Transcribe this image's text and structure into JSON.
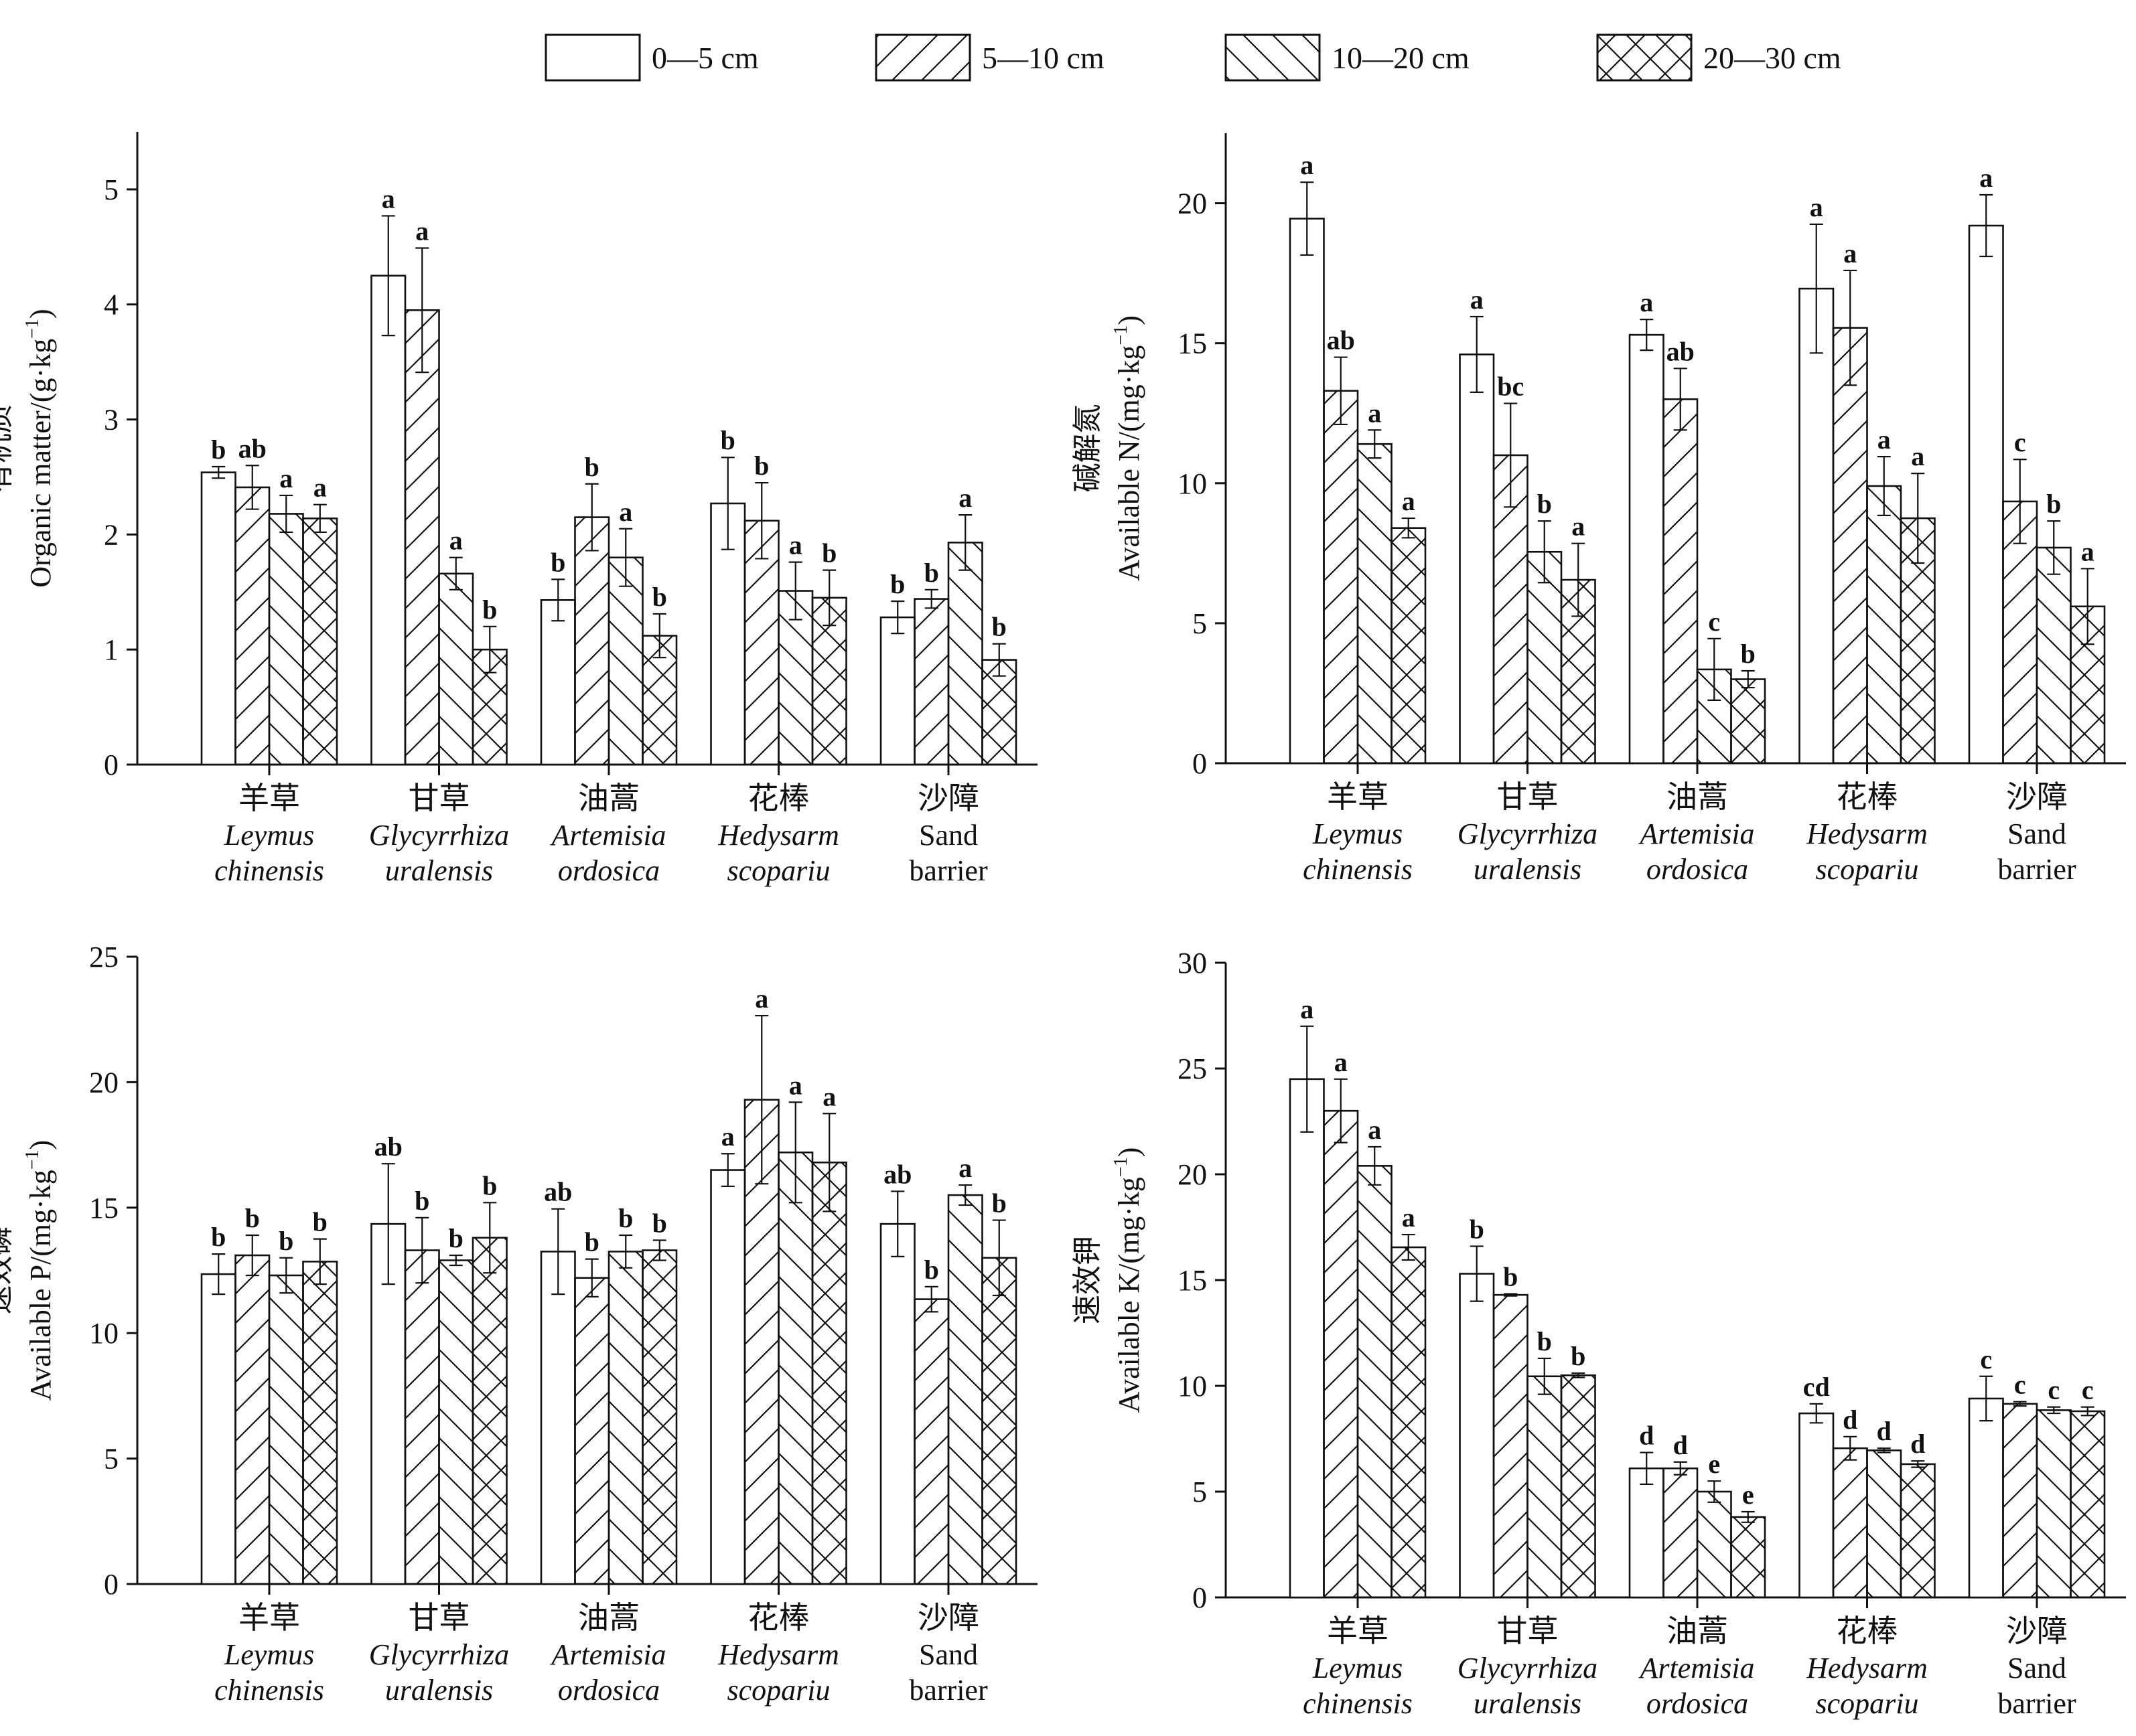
{
  "legend": {
    "entries": [
      "0—5 cm",
      "5—10 cm",
      "10—20 cm",
      "20—30 cm"
    ],
    "patterns": [
      "none",
      "diag-up",
      "diag-down",
      "cross"
    ]
  },
  "categories": [
    {
      "cn": "羊草",
      "en1": "Leymus",
      "en2": "chinensis",
      "italic": true
    },
    {
      "cn": "甘草",
      "en1": "Glycyrrhiza",
      "en2": "uralensis",
      "italic": true
    },
    {
      "cn": "油蒿",
      "en1": "Artemisia",
      "en2": "ordosica",
      "italic": true
    },
    {
      "cn": "花棒",
      "en1": "Hedysarm",
      "en2": "scopariu",
      "italic": true
    },
    {
      "cn": "沙障",
      "en1": "Sand",
      "en2": "barrier",
      "italic": false
    }
  ],
  "chart_data": [
    {
      "type": "bar",
      "ylabel_cn": "有机质",
      "ylabel_en": "Organic matter/(g·kg",
      "ylim": [
        0,
        5.5
      ],
      "yticks": [
        0,
        1,
        2,
        3,
        4,
        5
      ],
      "series": [
        {
          "name": "0—5 cm",
          "values": [
            2.54,
            4.25,
            1.43,
            2.27,
            1.28
          ],
          "errors": [
            0.05,
            0.52,
            0.18,
            0.4,
            0.14
          ],
          "letters": [
            "b",
            "a",
            "b",
            "b",
            "b"
          ]
        },
        {
          "name": "5—10 cm",
          "values": [
            2.41,
            3.95,
            2.15,
            2.12,
            1.44
          ],
          "errors": [
            0.19,
            0.54,
            0.29,
            0.33,
            0.08
          ],
          "letters": [
            "ab",
            "a",
            "b",
            "b",
            "b"
          ]
        },
        {
          "name": "10—20 cm",
          "values": [
            2.18,
            1.66,
            1.8,
            1.51,
            1.93
          ],
          "errors": [
            0.16,
            0.14,
            0.25,
            0.25,
            0.24
          ],
          "letters": [
            "a",
            "a",
            "a",
            "a",
            "a"
          ]
        },
        {
          "name": "20—30 cm",
          "values": [
            2.14,
            1.0,
            1.12,
            1.45,
            0.91
          ],
          "errors": [
            0.12,
            0.2,
            0.19,
            0.24,
            0.14
          ],
          "letters": [
            "a",
            "b",
            "b",
            "b",
            "b"
          ]
        }
      ]
    },
    {
      "type": "bar",
      "ylabel_cn": "碱解氮",
      "ylabel_en": "Available N/(mg·kg",
      "ylim": [
        0,
        22.5
      ],
      "yticks": [
        0,
        5,
        10,
        15,
        20
      ],
      "series": [
        {
          "name": "0—5 cm",
          "values": [
            19.45,
            14.6,
            15.3,
            16.95,
            19.2
          ],
          "errors": [
            1.3,
            1.35,
            0.55,
            2.3,
            1.1
          ],
          "letters": [
            "a",
            "a",
            "a",
            "a",
            "a"
          ]
        },
        {
          "name": "5—10 cm",
          "values": [
            13.3,
            11.0,
            13.0,
            15.55,
            9.35
          ],
          "errors": [
            1.2,
            1.85,
            1.1,
            2.05,
            1.5
          ],
          "letters": [
            "ab",
            "bc",
            "ab",
            "a",
            "c"
          ]
        },
        {
          "name": "10—20 cm",
          "values": [
            11.4,
            7.55,
            3.35,
            9.9,
            7.7
          ],
          "errors": [
            0.5,
            1.1,
            1.1,
            1.05,
            0.95
          ],
          "letters": [
            "a",
            "b",
            "c",
            "a",
            "b"
          ]
        },
        {
          "name": "20—30 cm",
          "values": [
            8.4,
            6.55,
            3.0,
            8.75,
            5.6
          ],
          "errors": [
            0.35,
            1.3,
            0.3,
            1.6,
            1.35
          ],
          "letters": [
            "a",
            "a",
            "b",
            "a",
            "a"
          ]
        }
      ]
    },
    {
      "type": "bar",
      "ylabel_cn": "速效磷",
      "ylabel_en": "Available P/(mg·kg",
      "ylim": [
        0,
        25
      ],
      "yticks": [
        0,
        5,
        10,
        15,
        20,
        25
      ],
      "series": [
        {
          "name": "0—5 cm",
          "values": [
            12.35,
            14.35,
            13.25,
            16.5,
            14.35
          ],
          "errors": [
            0.8,
            2.4,
            1.7,
            0.65,
            1.3
          ],
          "letters": [
            "b",
            "ab",
            "ab",
            "a",
            "ab"
          ]
        },
        {
          "name": "5—10 cm",
          "values": [
            13.1,
            13.3,
            12.2,
            19.3,
            11.35
          ],
          "errors": [
            0.8,
            1.3,
            0.75,
            3.35,
            0.5
          ],
          "letters": [
            "b",
            "b",
            "b",
            "a",
            "b"
          ]
        },
        {
          "name": "10—20 cm",
          "values": [
            12.3,
            12.9,
            13.25,
            17.2,
            15.5
          ],
          "errors": [
            0.7,
            0.2,
            0.65,
            2.0,
            0.4
          ],
          "letters": [
            "b",
            "b",
            "b",
            "a",
            "a"
          ]
        },
        {
          "name": "20—30 cm",
          "values": [
            12.85,
            13.8,
            13.3,
            16.8,
            13.0
          ],
          "errors": [
            0.9,
            1.4,
            0.4,
            1.95,
            1.5
          ],
          "letters": [
            "b",
            "b",
            "b",
            "a",
            "b"
          ]
        }
      ]
    },
    {
      "type": "bar",
      "ylabel_cn": "速效钾",
      "ylabel_en": "Available K/(mg·kg",
      "ylim": [
        0,
        30
      ],
      "yticks": [
        0,
        5,
        10,
        15,
        20,
        25,
        30
      ],
      "series": [
        {
          "name": "0—5 cm",
          "values": [
            24.5,
            15.3,
            6.1,
            8.7,
            9.4
          ],
          "errors": [
            2.5,
            1.3,
            0.75,
            0.45,
            1.05
          ],
          "letters": [
            "a",
            "b",
            "d",
            "cd",
            "c"
          ]
        },
        {
          "name": "5—10 cm",
          "values": [
            23.0,
            14.3,
            6.1,
            7.05,
            9.15
          ],
          "errors": [
            1.5,
            0.05,
            0.3,
            0.55,
            0.1
          ],
          "letters": [
            "a",
            "b",
            "d",
            "d",
            "c"
          ]
        },
        {
          "name": "10—20 cm",
          "values": [
            20.4,
            10.45,
            5.0,
            6.95,
            8.85
          ],
          "errors": [
            0.9,
            0.85,
            0.5,
            0.1,
            0.15
          ],
          "letters": [
            "a",
            "b",
            "e",
            "d",
            "c"
          ]
        },
        {
          "name": "20—30 cm",
          "values": [
            16.55,
            10.5,
            3.8,
            6.3,
            8.8
          ],
          "errors": [
            0.6,
            0.1,
            0.25,
            0.15,
            0.2
          ],
          "letters": [
            "a",
            "b",
            "e",
            "d",
            "c"
          ]
        }
      ]
    }
  ]
}
